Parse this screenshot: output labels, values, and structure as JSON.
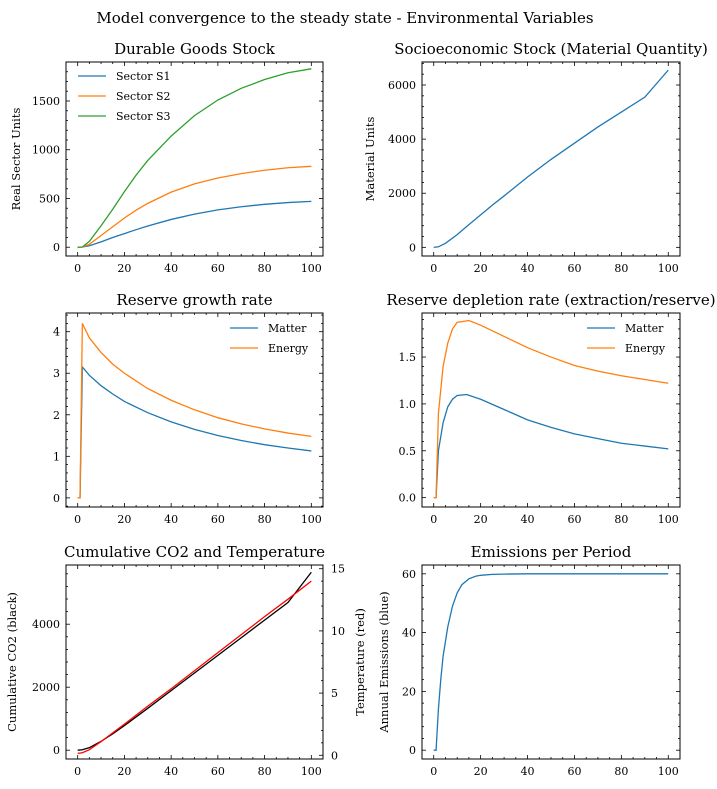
{
  "figure": {
    "title": "Model convergence to the steady state - Environmental Variables"
  },
  "colors": {
    "blue": "#1f77b4",
    "orange": "#ff7f0e",
    "green": "#2ca02c",
    "black": "#000000",
    "red": "#ff0000"
  },
  "chart_data": [
    {
      "id": "durable",
      "type": "line",
      "title": "Durable Goods Stock",
      "xlabel": "",
      "ylabel": "Real Sector Units",
      "xlim": [
        -5,
        105
      ],
      "ylim": [
        -90,
        1900
      ],
      "xticks": [
        0,
        20,
        40,
        60,
        80,
        100
      ],
      "yticks": [
        0,
        500,
        1000,
        1500
      ],
      "legend": "top-left",
      "series": [
        {
          "name": "Sector S1",
          "color": "#1f77b4",
          "x": [
            0,
            2,
            5,
            10,
            15,
            20,
            25,
            30,
            40,
            50,
            60,
            70,
            80,
            90,
            100
          ],
          "y": [
            0,
            2,
            15,
            55,
            100,
            140,
            180,
            218,
            285,
            340,
            383,
            415,
            440,
            458,
            470
          ]
        },
        {
          "name": "Sector S2",
          "color": "#ff7f0e",
          "x": [
            0,
            2,
            5,
            10,
            15,
            20,
            25,
            30,
            40,
            50,
            60,
            70,
            80,
            90,
            100
          ],
          "y": [
            0,
            2,
            30,
            120,
            210,
            300,
            380,
            450,
            565,
            650,
            710,
            755,
            790,
            815,
            830
          ]
        },
        {
          "name": "Sector S3",
          "color": "#2ca02c",
          "x": [
            0,
            2,
            5,
            10,
            15,
            20,
            25,
            30,
            40,
            50,
            60,
            70,
            80,
            90,
            100
          ],
          "y": [
            0,
            2,
            60,
            220,
            390,
            570,
            740,
            890,
            1140,
            1350,
            1510,
            1630,
            1720,
            1790,
            1830
          ]
        }
      ]
    },
    {
      "id": "socio",
      "type": "line",
      "title": "Socioeconomic Stock (Material Quantity)",
      "xlabel": "",
      "ylabel": "Material Units",
      "xlim": [
        -5,
        105
      ],
      "ylim": [
        -320,
        6850
      ],
      "xticks": [
        0,
        20,
        40,
        60,
        80,
        100
      ],
      "yticks": [
        0,
        2000,
        4000,
        6000
      ],
      "series": [
        {
          "name": "",
          "color": "#1f77b4",
          "x": [
            0,
            2,
            5,
            10,
            15,
            20,
            25,
            30,
            40,
            50,
            60,
            70,
            80,
            90,
            100
          ],
          "y": [
            0,
            20,
            150,
            470,
            840,
            1200,
            1560,
            1900,
            2600,
            3250,
            3850,
            4450,
            5000,
            5550,
            6550
          ]
        }
      ]
    },
    {
      "id": "growth",
      "type": "line",
      "title": "Reserve growth rate",
      "xlabel": "",
      "ylabel": "",
      "xlim": [
        -5,
        105
      ],
      "ylim": [
        -0.22,
        4.45
      ],
      "xticks": [
        0,
        20,
        40,
        60,
        80,
        100
      ],
      "yticks": [
        0,
        1,
        2,
        3,
        4
      ],
      "legend": "top-right",
      "series": [
        {
          "name": "Matter",
          "color": "#1f77b4",
          "x": [
            0,
            1,
            2,
            5,
            10,
            15,
            20,
            30,
            40,
            50,
            60,
            70,
            80,
            90,
            100
          ],
          "y": [
            0,
            0,
            3.15,
            2.95,
            2.7,
            2.5,
            2.32,
            2.05,
            1.83,
            1.65,
            1.5,
            1.38,
            1.28,
            1.2,
            1.13
          ]
        },
        {
          "name": "Energy",
          "color": "#ff7f0e",
          "x": [
            0,
            1,
            2,
            5,
            10,
            15,
            20,
            30,
            40,
            50,
            60,
            70,
            80,
            90,
            100
          ],
          "y": [
            0,
            0,
            4.2,
            3.85,
            3.5,
            3.22,
            3.0,
            2.63,
            2.35,
            2.12,
            1.93,
            1.78,
            1.66,
            1.56,
            1.48
          ]
        }
      ]
    },
    {
      "id": "depletion",
      "type": "line",
      "title": "Reserve depletion rate (extraction/reserve)",
      "xlabel": "",
      "ylabel": "",
      "xlim": [
        -5,
        105
      ],
      "ylim": [
        -0.1,
        1.97
      ],
      "xticks": [
        0,
        20,
        40,
        60,
        80,
        100
      ],
      "yticks": [
        0.0,
        0.5,
        1.0,
        1.5
      ],
      "legend": "top-right",
      "series": [
        {
          "name": "Matter",
          "color": "#1f77b4",
          "x": [
            0,
            1,
            2,
            4,
            6,
            8,
            10,
            14,
            20,
            30,
            40,
            50,
            60,
            70,
            80,
            90,
            100
          ],
          "y": [
            0,
            0,
            0.5,
            0.8,
            0.97,
            1.05,
            1.09,
            1.1,
            1.05,
            0.94,
            0.83,
            0.75,
            0.68,
            0.63,
            0.58,
            0.55,
            0.52
          ]
        },
        {
          "name": "Energy",
          "color": "#ff7f0e",
          "x": [
            0,
            1,
            2,
            4,
            6,
            8,
            10,
            15,
            20,
            30,
            40,
            50,
            60,
            70,
            80,
            90,
            100
          ],
          "y": [
            0,
            0,
            0.9,
            1.4,
            1.65,
            1.8,
            1.87,
            1.89,
            1.84,
            1.72,
            1.6,
            1.5,
            1.41,
            1.35,
            1.3,
            1.26,
            1.22
          ]
        }
      ]
    },
    {
      "id": "co2",
      "type": "line",
      "title": "Cumulative CO2 and Temperature",
      "xlabel": "",
      "ylabel": "Cumulative CO2 (black)",
      "ylabel_right": "Temperature (red)",
      "xlim": [
        -5,
        105
      ],
      "ylim": [
        -280,
        5880
      ],
      "ylim_right": [
        -0.3,
        15.3
      ],
      "xticks": [
        0,
        20,
        40,
        60,
        80,
        100
      ],
      "yticks": [
        0,
        2000,
        4000
      ],
      "yticks_right": [
        0,
        5,
        10,
        15
      ],
      "series": [
        {
          "name": "",
          "color": "#000000",
          "axis": "left",
          "x": [
            0,
            2,
            5,
            10,
            15,
            20,
            30,
            40,
            50,
            60,
            70,
            80,
            90,
            100
          ],
          "y": [
            0,
            15,
            80,
            280,
            520,
            780,
            1330,
            1890,
            2450,
            3010,
            3570,
            4130,
            4690,
            5650
          ]
        },
        {
          "name": "",
          "color": "#ff0000",
          "axis": "right",
          "x": [
            0,
            2,
            5,
            10,
            15,
            20,
            30,
            40,
            50,
            60,
            70,
            80,
            90,
            100
          ],
          "y": [
            0.15,
            0.2,
            0.45,
            1.1,
            1.8,
            2.5,
            3.95,
            5.35,
            6.8,
            8.25,
            9.7,
            11.15,
            12.55,
            14.0
          ]
        }
      ]
    },
    {
      "id": "emissions",
      "type": "line",
      "title": "Emissions per Period",
      "xlabel": "",
      "ylabel": "Annual Emissions (blue)",
      "xlim": [
        -5,
        105
      ],
      "ylim": [
        -3,
        63
      ],
      "xticks": [
        0,
        20,
        40,
        60,
        80,
        100
      ],
      "yticks": [
        0,
        20,
        40,
        60
      ],
      "series": [
        {
          "name": "",
          "color": "#1f77b4",
          "x": [
            0,
            1,
            2,
            3,
            4,
            6,
            8,
            10,
            12,
            15,
            18,
            20,
            25,
            30,
            40,
            60,
            80,
            100
          ],
          "y": [
            0,
            0,
            14,
            24,
            32,
            42,
            49,
            53.5,
            56.3,
            58.3,
            59.2,
            59.5,
            59.8,
            59.9,
            60,
            60,
            60,
            60
          ]
        }
      ]
    }
  ]
}
